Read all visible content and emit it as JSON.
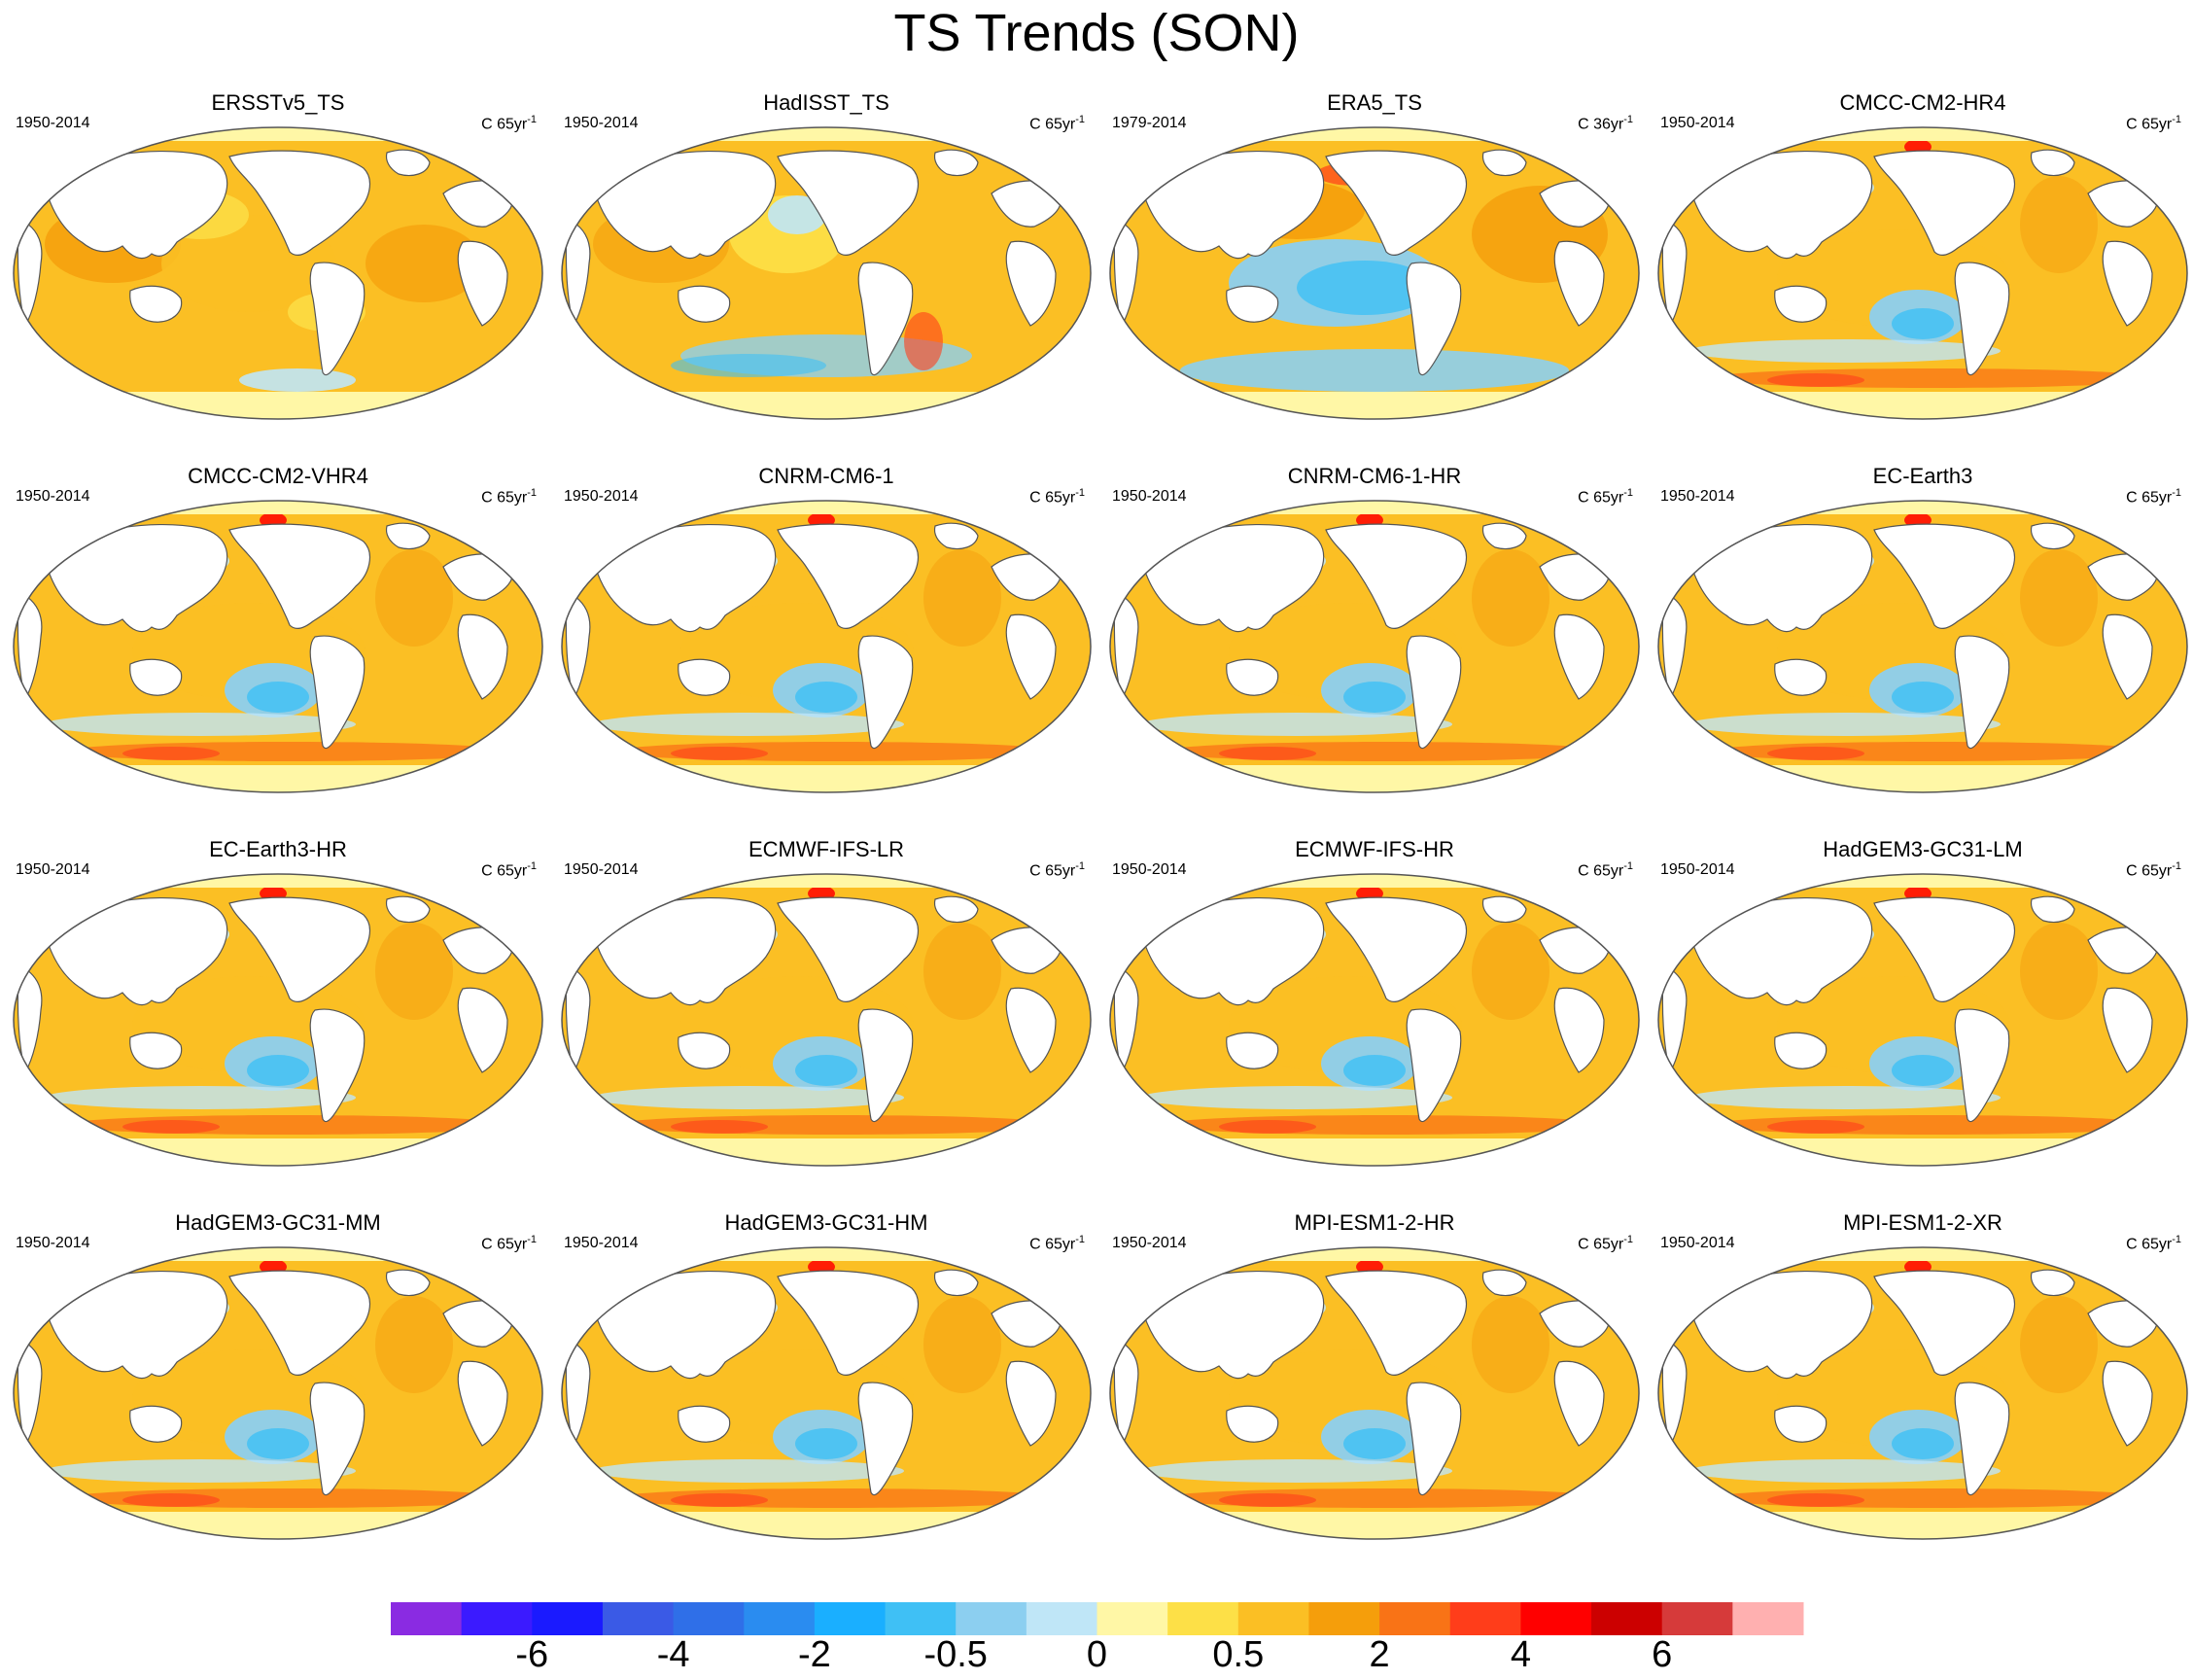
{
  "figure": {
    "title": "TS Trends (SON)"
  },
  "panels": [
    {
      "name": "ERSSTv5_TS",
      "period": "1950-2014",
      "units": "C 65yr",
      "units_exp": "-1",
      "pattern": "observational-smooth"
    },
    {
      "name": "HadISST_TS",
      "period": "1950-2014",
      "units": "C 65yr",
      "units_exp": "-1",
      "pattern": "observational-patchy"
    },
    {
      "name": "ERA5_TS",
      "period": "1979-2014",
      "units": "C 36yr",
      "units_exp": "-1",
      "pattern": "la-nina-like"
    },
    {
      "name": "CMCC-CM2-HR4",
      "period": "1950-2014",
      "units": "C 65yr",
      "units_exp": "-1",
      "pattern": "model"
    },
    {
      "name": "CMCC-CM2-VHR4",
      "period": "1950-2014",
      "units": "C 65yr",
      "units_exp": "-1",
      "pattern": "model"
    },
    {
      "name": "CNRM-CM6-1",
      "period": "1950-2014",
      "units": "C 65yr",
      "units_exp": "-1",
      "pattern": "model"
    },
    {
      "name": "CNRM-CM6-1-HR",
      "period": "1950-2014",
      "units": "C 65yr",
      "units_exp": "-1",
      "pattern": "model"
    },
    {
      "name": "EC-Earth3",
      "period": "1950-2014",
      "units": "C 65yr",
      "units_exp": "-1",
      "pattern": "model"
    },
    {
      "name": "EC-Earth3-HR",
      "period": "1950-2014",
      "units": "C 65yr",
      "units_exp": "-1",
      "pattern": "model"
    },
    {
      "name": "ECMWF-IFS-LR",
      "period": "1950-2014",
      "units": "C 65yr",
      "units_exp": "-1",
      "pattern": "model"
    },
    {
      "name": "ECMWF-IFS-HR",
      "period": "1950-2014",
      "units": "C 65yr",
      "units_exp": "-1",
      "pattern": "model"
    },
    {
      "name": "HadGEM3-GC31-LM",
      "period": "1950-2014",
      "units": "C 65yr",
      "units_exp": "-1",
      "pattern": "model"
    },
    {
      "name": "HadGEM3-GC31-MM",
      "period": "1950-2014",
      "units": "C 65yr",
      "units_exp": "-1",
      "pattern": "model"
    },
    {
      "name": "HadGEM3-GC31-HM",
      "period": "1950-2014",
      "units": "C 65yr",
      "units_exp": "-1",
      "pattern": "model"
    },
    {
      "name": "MPI-ESM1-2-HR",
      "period": "1950-2014",
      "units": "C 65yr",
      "units_exp": "-1",
      "pattern": "model"
    },
    {
      "name": "MPI-ESM1-2-XR",
      "period": "1950-2014",
      "units": "C 65yr",
      "units_exp": "-1",
      "pattern": "model"
    }
  ],
  "colorbar": {
    "colors": [
      "#8a2be2",
      "#3b1aff",
      "#1a1aff",
      "#3a5ae6",
      "#2f6fe8",
      "#2a8cf0",
      "#1aafff",
      "#3fc0f5",
      "#8ccff0",
      "#bfe6f7",
      "#fff7a6",
      "#fde047",
      "#fbbf24",
      "#f59e0b",
      "#f97316",
      "#ff3d1a",
      "#ff0000",
      "#cc0000",
      "#d63a3a",
      "#ffb0b0"
    ],
    "tick_labels": [
      "-6",
      "-4",
      "-2",
      "-0.5",
      "0",
      "0.5",
      "2",
      "4",
      "6"
    ],
    "tick_boundaries": [
      2,
      4,
      6,
      8,
      10,
      12,
      14,
      16,
      18
    ]
  }
}
